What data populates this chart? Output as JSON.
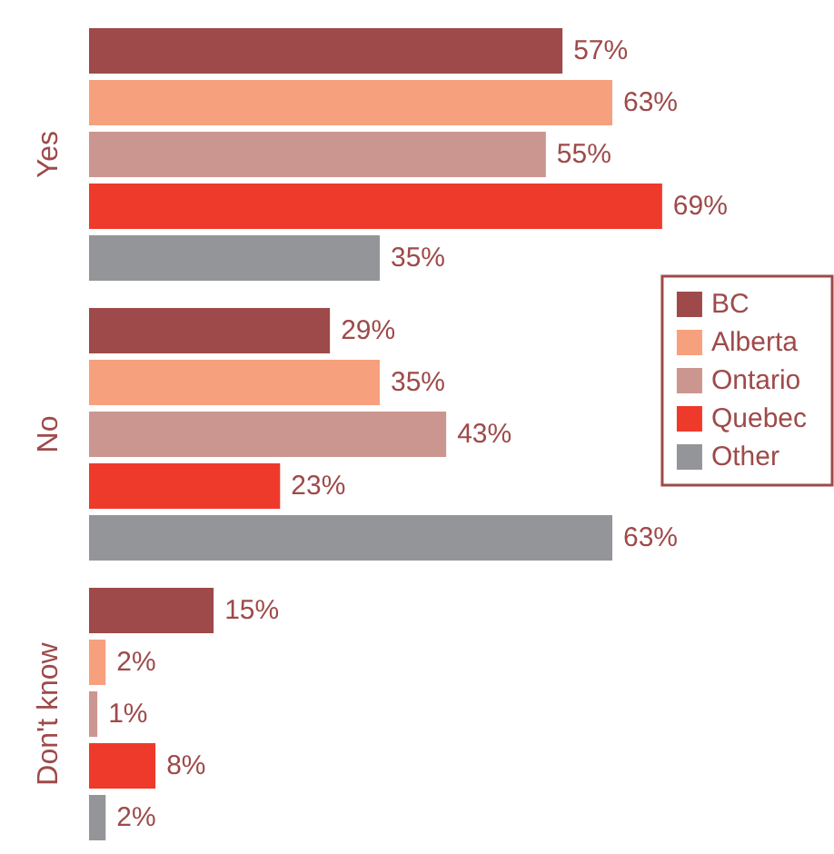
{
  "chart_data": {
    "type": "bar",
    "orientation": "horizontal",
    "categories": [
      "Yes",
      "No",
      "Don't know"
    ],
    "series": [
      {
        "name": "BC",
        "color": "#9e4a4a",
        "values": [
          57,
          29,
          15
        ],
        "value_labels": [
          "57%",
          "29%",
          "15%"
        ]
      },
      {
        "name": "Alberta",
        "color": "#f7a07e",
        "values": [
          63,
          35,
          2
        ],
        "value_labels": [
          "63%",
          "35%",
          "2%"
        ]
      },
      {
        "name": "Ontario",
        "color": "#cc9690",
        "values": [
          55,
          43,
          1
        ],
        "value_labels": [
          "55%",
          "43%",
          "1%"
        ]
      },
      {
        "name": "Quebec",
        "color": "#ee3a2a",
        "values": [
          69,
          23,
          8
        ],
        "value_labels": [
          "69%",
          "23%",
          "8%"
        ]
      },
      {
        "name": "Other",
        "color": "#939598",
        "values": [
          35,
          63,
          2
        ],
        "value_labels": [
          "35%",
          "63%",
          "2%"
        ]
      }
    ],
    "tick_labels": "y",
    "grid": false,
    "legend": "right"
  }
}
